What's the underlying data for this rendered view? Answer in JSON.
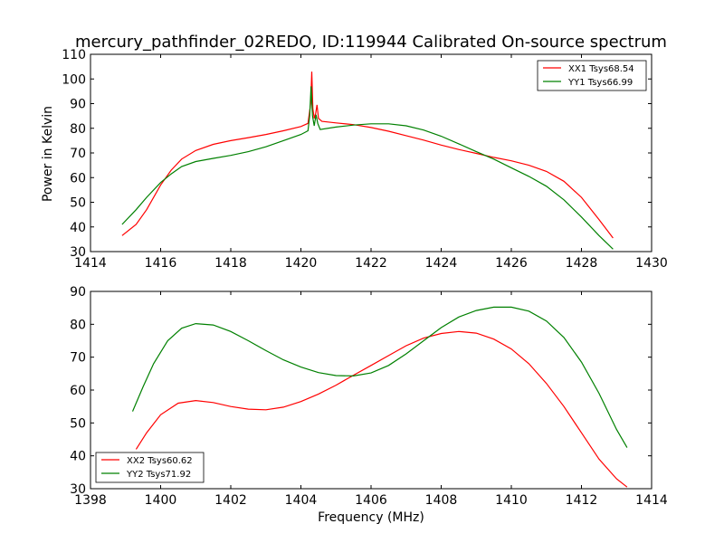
{
  "figure": {
    "title": "mercury_pathfinder_02REDO, ID:119944 Calibrated On-source spectrum",
    "xlabel": "Frequency (MHz)",
    "ylabel": "Power in Kelvin"
  },
  "chart_data": [
    {
      "type": "line",
      "title": "mercury_pathfinder_02REDO, ID:119944 Calibrated On-source spectrum",
      "xlabel": "",
      "ylabel": "Power in Kelvin",
      "xlim": [
        1414,
        1430
      ],
      "ylim": [
        30,
        110
      ],
      "xticks": [
        1414,
        1416,
        1418,
        1420,
        1422,
        1424,
        1426,
        1428,
        1430
      ],
      "yticks": [
        30,
        40,
        50,
        60,
        70,
        80,
        90,
        100,
        110
      ],
      "legend_position": "top-right",
      "series": [
        {
          "name": "XX1 Tsys68.54",
          "color": "#ff0000",
          "points": [
            [
              1414.9,
              36.5
            ],
            [
              1415.3,
              41
            ],
            [
              1415.6,
              47
            ],
            [
              1416.0,
              57
            ],
            [
              1416.3,
              63
            ],
            [
              1416.6,
              67.5
            ],
            [
              1417.0,
              71
            ],
            [
              1417.5,
              73.5
            ],
            [
              1418.0,
              75
            ],
            [
              1418.5,
              76.2
            ],
            [
              1419.0,
              77.5
            ],
            [
              1419.5,
              79
            ],
            [
              1420.0,
              80.7
            ],
            [
              1420.2,
              82
            ],
            [
              1420.28,
              90
            ],
            [
              1420.31,
              103
            ],
            [
              1420.34,
              88
            ],
            [
              1420.38,
              84
            ],
            [
              1420.42,
              86
            ],
            [
              1420.46,
              89.5
            ],
            [
              1420.5,
              84
            ],
            [
              1420.6,
              82.8
            ],
            [
              1421.0,
              82.2
            ],
            [
              1421.5,
              81.5
            ],
            [
              1422.0,
              80.3
            ],
            [
              1422.5,
              78.8
            ],
            [
              1423.0,
              77
            ],
            [
              1423.5,
              75.2
            ],
            [
              1424.0,
              73.2
            ],
            [
              1424.5,
              71.4
            ],
            [
              1425.0,
              69.8
            ],
            [
              1425.5,
              68.2
            ],
            [
              1426.0,
              66.8
            ],
            [
              1426.5,
              65
            ],
            [
              1427.0,
              62.5
            ],
            [
              1427.5,
              58.5
            ],
            [
              1428.0,
              52
            ],
            [
              1428.5,
              43
            ],
            [
              1428.9,
              35.5
            ]
          ]
        },
        {
          "name": "YY1 Tsys66.99",
          "color": "#008000",
          "points": [
            [
              1414.9,
              41
            ],
            [
              1415.3,
              47
            ],
            [
              1415.6,
              52
            ],
            [
              1416.0,
              58
            ],
            [
              1416.3,
              61.5
            ],
            [
              1416.6,
              64.5
            ],
            [
              1417.0,
              66.5
            ],
            [
              1417.5,
              67.8
            ],
            [
              1418.0,
              69
            ],
            [
              1418.5,
              70.5
            ],
            [
              1419.0,
              72.5
            ],
            [
              1419.5,
              75
            ],
            [
              1420.0,
              77.5
            ],
            [
              1420.2,
              79
            ],
            [
              1420.25,
              85
            ],
            [
              1420.29,
              97
            ],
            [
              1420.33,
              85
            ],
            [
              1420.38,
              81
            ],
            [
              1420.43,
              85.5
            ],
            [
              1420.48,
              82
            ],
            [
              1420.55,
              79.5
            ],
            [
              1421.0,
              80.5
            ],
            [
              1421.5,
              81.3
            ],
            [
              1422.0,
              81.8
            ],
            [
              1422.5,
              81.8
            ],
            [
              1423.0,
              81
            ],
            [
              1423.5,
              79.3
            ],
            [
              1424.0,
              76.8
            ],
            [
              1424.5,
              73.7
            ],
            [
              1425.0,
              70.5
            ],
            [
              1425.5,
              67.5
            ],
            [
              1426.0,
              64
            ],
            [
              1426.5,
              60.5
            ],
            [
              1427.0,
              56.5
            ],
            [
              1427.5,
              51
            ],
            [
              1428.0,
              44
            ],
            [
              1428.5,
              36.5
            ],
            [
              1428.9,
              31
            ]
          ]
        }
      ]
    },
    {
      "type": "line",
      "title": "",
      "xlabel": "Frequency (MHz)",
      "ylabel": "",
      "xlim": [
        1398,
        1414
      ],
      "ylim": [
        30,
        90
      ],
      "xticks": [
        1398,
        1400,
        1402,
        1404,
        1406,
        1408,
        1410,
        1412,
        1414
      ],
      "yticks": [
        30,
        40,
        50,
        60,
        70,
        80,
        90
      ],
      "legend_position": "bottom-left",
      "series": [
        {
          "name": "XX2 Tsys60.62",
          "color": "#ff0000",
          "points": [
            [
              1399.3,
              42
            ],
            [
              1399.6,
              47
            ],
            [
              1400.0,
              52.5
            ],
            [
              1400.5,
              56
            ],
            [
              1401.0,
              56.8
            ],
            [
              1401.5,
              56.2
            ],
            [
              1402.0,
              55
            ],
            [
              1402.5,
              54.2
            ],
            [
              1403.0,
              54
            ],
            [
              1403.5,
              54.8
            ],
            [
              1404.0,
              56.5
            ],
            [
              1404.5,
              58.8
            ],
            [
              1405.0,
              61.5
            ],
            [
              1405.5,
              64.5
            ],
            [
              1406.0,
              67.5
            ],
            [
              1406.5,
              70.5
            ],
            [
              1407.0,
              73.5
            ],
            [
              1407.5,
              75.8
            ],
            [
              1408.0,
              77.2
            ],
            [
              1408.5,
              77.8
            ],
            [
              1409.0,
              77.3
            ],
            [
              1409.5,
              75.5
            ],
            [
              1410.0,
              72.5
            ],
            [
              1410.5,
              68
            ],
            [
              1411.0,
              62
            ],
            [
              1411.5,
              55
            ],
            [
              1412.0,
              47
            ],
            [
              1412.5,
              39
            ],
            [
              1413.0,
              33
            ],
            [
              1413.3,
              30.5
            ]
          ]
        },
        {
          "name": "YY2 Tsys71.92",
          "color": "#008000",
          "points": [
            [
              1399.2,
              53.5
            ],
            [
              1399.5,
              61
            ],
            [
              1399.8,
              68
            ],
            [
              1400.2,
              75
            ],
            [
              1400.6,
              78.8
            ],
            [
              1401.0,
              80.2
            ],
            [
              1401.5,
              79.8
            ],
            [
              1402.0,
              77.8
            ],
            [
              1402.5,
              75
            ],
            [
              1403.0,
              72
            ],
            [
              1403.5,
              69.2
            ],
            [
              1404.0,
              67
            ],
            [
              1404.5,
              65.3
            ],
            [
              1405.0,
              64.4
            ],
            [
              1405.5,
              64.3
            ],
            [
              1406.0,
              65.2
            ],
            [
              1406.5,
              67.5
            ],
            [
              1407.0,
              71
            ],
            [
              1407.5,
              75
            ],
            [
              1408.0,
              79
            ],
            [
              1408.5,
              82.2
            ],
            [
              1409.0,
              84.2
            ],
            [
              1409.5,
              85.2
            ],
            [
              1410.0,
              85.2
            ],
            [
              1410.5,
              84
            ],
            [
              1411.0,
              81
            ],
            [
              1411.5,
              76
            ],
            [
              1412.0,
              68.5
            ],
            [
              1412.5,
              59
            ],
            [
              1413.0,
              48
            ],
            [
              1413.3,
              42.5
            ]
          ]
        }
      ]
    }
  ]
}
